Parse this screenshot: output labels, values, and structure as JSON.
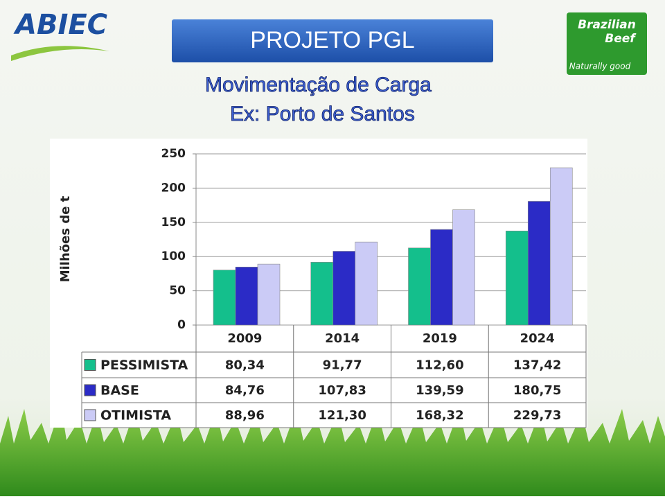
{
  "header": {
    "logo_left": "ABIEC",
    "logo_right": [
      "Brazilian",
      "Beef"
    ],
    "tagline": "Naturally good",
    "banner": "PROJETO PGL",
    "title": "Movimentação de Carga",
    "subtitle": "Ex: Porto de Santos"
  },
  "chart_data": {
    "type": "bar",
    "y_label": "Milhões de t",
    "categories": [
      "2009",
      "2014",
      "2019",
      "2024"
    ],
    "series": [
      {
        "name": "PESSIMISTA",
        "color": "#14bf8c",
        "values": [
          80.34,
          91.77,
          112.6,
          137.42
        ],
        "value_labels": [
          "80,34",
          "91,77",
          "112,60",
          "137,42"
        ]
      },
      {
        "name": "BASE",
        "color": "#2b2bc6",
        "values": [
          84.76,
          107.83,
          139.59,
          180.75
        ],
        "value_labels": [
          "84,76",
          "107,83",
          "139,59",
          "180,75"
        ]
      },
      {
        "name": "OTIMISTA",
        "color": "#cbcbf6",
        "values": [
          88.96,
          121.3,
          168.32,
          229.73
        ],
        "value_labels": [
          "88,96",
          "121,30",
          "168,32",
          "229,73"
        ]
      }
    ],
    "ylim": [
      0,
      250
    ],
    "yticks": [
      0,
      50,
      100,
      150,
      200,
      250
    ],
    "grid": true
  }
}
